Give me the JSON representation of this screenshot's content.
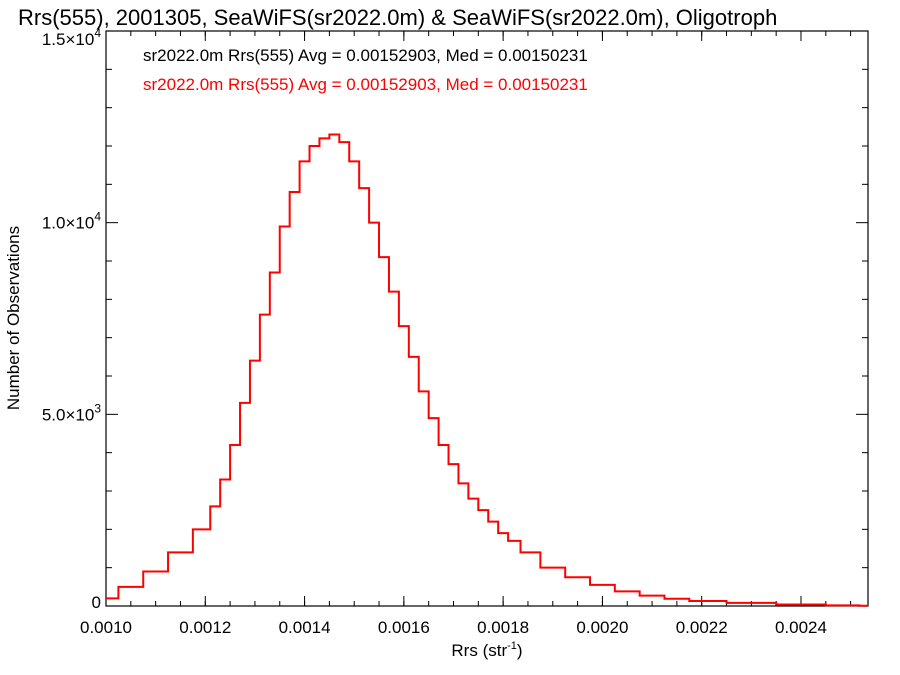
{
  "chart_data": {
    "type": "line",
    "title": "Rrs(555), 2001305, SeaWiFS(sr2022.0m) & SeaWiFS(sr2022.0m), Oligotroph",
    "xlabel": "Rrs (str",
    "xlabel_sup": "-1",
    "xlabel_close": ")",
    "ylabel": "Number of Observations",
    "xlim": [
      0.001,
      0.002535
    ],
    "ylim": [
      0,
      15000
    ],
    "grid": false,
    "legend_position": "top-left",
    "x_ticks": [
      {
        "value": 0.001,
        "label": "0.0010"
      },
      {
        "value": 0.0012,
        "label": "0.0012"
      },
      {
        "value": 0.0014,
        "label": "0.0014"
      },
      {
        "value": 0.0016,
        "label": "0.0016"
      },
      {
        "value": 0.0018,
        "label": "0.0018"
      },
      {
        "value": 0.002,
        "label": "0.0020"
      },
      {
        "value": 0.0022,
        "label": "0.0022"
      },
      {
        "value": 0.0024,
        "label": "0.0024"
      }
    ],
    "y_ticks": [
      {
        "value": 0,
        "mantissa": "0",
        "exp": ""
      },
      {
        "value": 5000,
        "mantissa": "5.0×10",
        "exp": "3"
      },
      {
        "value": 10000,
        "mantissa": "1.0×10",
        "exp": "4"
      },
      {
        "value": 15000,
        "mantissa": "1.5×10",
        "exp": "4"
      }
    ],
    "legend": [
      {
        "text": "sr2022.0m Rrs(555) Avg = 0.00152903, Med = 0.00150231",
        "color": "#000000"
      },
      {
        "text": "sr2022.0m Rrs(555) Avg = 0.00152903, Med = 0.00150231",
        "color": "#ff0000"
      }
    ],
    "series": [
      {
        "color": "#ff0000",
        "x": [
          0.001,
          0.00105,
          0.0011,
          0.00115,
          0.0012,
          0.00122,
          0.00124,
          0.00126,
          0.00128,
          0.0013,
          0.00132,
          0.00134,
          0.00136,
          0.00138,
          0.0014,
          0.00142,
          0.00144,
          0.00146,
          0.00148,
          0.0015,
          0.00152,
          0.00154,
          0.00156,
          0.00158,
          0.0016,
          0.00162,
          0.00164,
          0.00166,
          0.00168,
          0.0017,
          0.00172,
          0.00174,
          0.00176,
          0.00178,
          0.0018,
          0.00182,
          0.00185,
          0.0019,
          0.00195,
          0.002,
          0.00205,
          0.0021,
          0.00215,
          0.0022,
          0.0023,
          0.0024,
          0.0025,
          0.002535
        ],
        "y": [
          200,
          500,
          900,
          1400,
          2000,
          2600,
          3300,
          4200,
          5300,
          6400,
          7600,
          8700,
          9900,
          10800,
          11600,
          12000,
          12200,
          12300,
          12100,
          11600,
          10900,
          10000,
          9100,
          8200,
          7300,
          6500,
          5600,
          4900,
          4200,
          3700,
          3200,
          2800,
          2500,
          2200,
          1900,
          1700,
          1400,
          1000,
          750,
          550,
          380,
          270,
          190,
          130,
          80,
          40,
          15,
          5
        ]
      }
    ]
  }
}
